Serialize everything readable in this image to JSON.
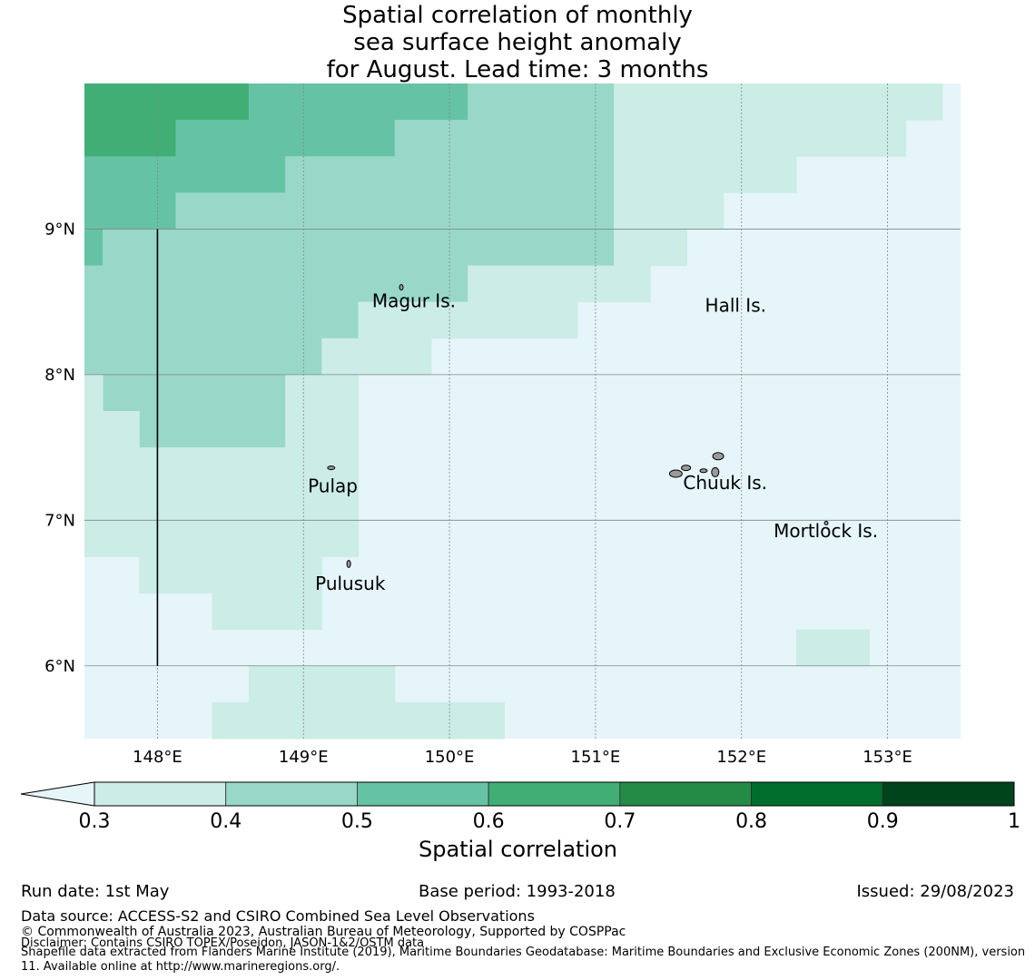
{
  "title": {
    "line1": "Spatial correlation of monthly",
    "line2": "sea surface height anomaly",
    "line3": "for August. Lead time: 3 months"
  },
  "map": {
    "lon_range": [
      147.5,
      153.5
    ],
    "lat_range": [
      5.5,
      10.0
    ],
    "lon_ticks": [
      148,
      149,
      150,
      151,
      152,
      153
    ],
    "lon_tick_labels": [
      "148°E",
      "149°E",
      "150°E",
      "151°E",
      "152°E",
      "153°E"
    ],
    "lat_ticks": [
      6,
      7,
      8,
      9
    ],
    "lat_tick_labels": [
      "6°N",
      "7°N",
      "8°N",
      "9°N"
    ],
    "background_color": "#e5f5f9",
    "class_colors": [
      "#e5f5f9",
      "#ccece6",
      "#99d8c9",
      "#66c2a4",
      "#41ae76",
      "#238b45",
      "#006d2c",
      "#00441b"
    ],
    "cells": [
      {
        "lon": [
          147.5,
          148.125
        ],
        "lat": [
          9.5,
          10.0
        ],
        "class": 4
      },
      {
        "lon": [
          148.125,
          148.625
        ],
        "lat": [
          9.75,
          10.0
        ],
        "class": 4
      },
      {
        "lon": [
          148.125,
          149.625
        ],
        "lat": [
          9.5,
          9.75
        ],
        "class": 3
      },
      {
        "lon": [
          148.625,
          150.125
        ],
        "lat": [
          9.75,
          10.0
        ],
        "class": 3
      },
      {
        "lon": [
          147.5,
          148.875
        ],
        "lat": [
          9.25,
          9.5
        ],
        "class": 3
      },
      {
        "lon": [
          147.5,
          148.125
        ],
        "lat": [
          9.0,
          9.25
        ],
        "class": 3
      },
      {
        "lon": [
          147.5,
          147.625
        ],
        "lat": [
          8.75,
          9.0
        ],
        "class": 3
      },
      {
        "lon": [
          150.125,
          151.125
        ],
        "lat": [
          9.75,
          10.0
        ],
        "class": 2
      },
      {
        "lon": [
          149.625,
          151.125
        ],
        "lat": [
          9.5,
          9.75
        ],
        "class": 2
      },
      {
        "lon": [
          148.875,
          151.125
        ],
        "lat": [
          9.25,
          9.5
        ],
        "class": 2
      },
      {
        "lon": [
          148.125,
          151.125
        ],
        "lat": [
          9.0,
          9.25
        ],
        "class": 2
      },
      {
        "lon": [
          147.625,
          151.125
        ],
        "lat": [
          8.75,
          9.0
        ],
        "class": 2
      },
      {
        "lon": [
          147.5,
          150.125
        ],
        "lat": [
          8.5,
          8.75
        ],
        "class": 2
      },
      {
        "lon": [
          147.5,
          149.375
        ],
        "lat": [
          8.25,
          8.5
        ],
        "class": 2
      },
      {
        "lon": [
          147.5,
          149.125
        ],
        "lat": [
          8.0,
          8.25
        ],
        "class": 2
      },
      {
        "lon": [
          147.625,
          148.875
        ],
        "lat": [
          7.75,
          8.0
        ],
        "class": 2
      },
      {
        "lon": [
          147.875,
          148.375
        ],
        "lat": [
          7.5,
          7.75
        ],
        "class": 2
      },
      {
        "lon": [
          147.875,
          148.375
        ],
        "lat": [
          7.5,
          7.75
        ],
        "class": 2
      },
      {
        "lon": [
          148.375,
          148.375
        ],
        "lat": [
          7.5,
          7.75
        ],
        "class": 2
      },
      {
        "lon": [
          147.875,
          148.125
        ],
        "lat": [
          7.5,
          7.75
        ],
        "class": 2
      },
      {
        "lon": [
          147.875,
          147.875
        ],
        "lat": [
          7.5,
          7.75
        ],
        "class": 2
      },
      {
        "lon": [
          147.875,
          147.875
        ],
        "lat": [
          7.5,
          7.75
        ],
        "class": 2
      },
      {
        "lon": [
          147.875,
          147.875
        ],
        "lat": [
          7.5,
          7.75
        ],
        "class": 2
      },
      {
        "lon": [
          147.875,
          148.875
        ],
        "lat": [
          7.5,
          7.75
        ],
        "class": 2
      },
      {
        "lon": [
          151.125,
          153.375
        ],
        "lat": [
          9.75,
          10.0
        ],
        "class": 1
      },
      {
        "lon": [
          151.125,
          153.125
        ],
        "lat": [
          9.5,
          9.75
        ],
        "class": 1
      },
      {
        "lon": [
          151.125,
          152.375
        ],
        "lat": [
          9.25,
          9.5
        ],
        "class": 1
      },
      {
        "lon": [
          151.125,
          151.875
        ],
        "lat": [
          9.0,
          9.25
        ],
        "class": 1
      },
      {
        "lon": [
          151.125,
          151.625
        ],
        "lat": [
          8.75,
          9.0
        ],
        "class": 1
      },
      {
        "lon": [
          150.125,
          151.375
        ],
        "lat": [
          8.5,
          8.75
        ],
        "class": 1
      },
      {
        "lon": [
          149.375,
          150.875
        ],
        "lat": [
          8.25,
          8.5
        ],
        "class": 1
      },
      {
        "lon": [
          149.125,
          149.875
        ],
        "lat": [
          8.0,
          8.25
        ],
        "class": 1
      },
      {
        "lon": [
          147.5,
          147.625
        ],
        "lat": [
          7.75,
          8.0
        ],
        "class": 1
      },
      {
        "lon": [
          148.875,
          149.375
        ],
        "lat": [
          7.75,
          8.0
        ],
        "class": 1
      },
      {
        "lon": [
          147.5,
          147.875
        ],
        "lat": [
          7.5,
          7.75
        ],
        "class": 1
      },
      {
        "lon": [
          148.875,
          149.375
        ],
        "lat": [
          7.5,
          7.75
        ],
        "class": 1
      },
      {
        "lon": [
          147.5,
          149.125
        ],
        "lat": [
          7.0,
          7.5
        ],
        "class": 1
      },
      {
        "lon": [
          147.5,
          149.375
        ],
        "lat": [
          7.0,
          7.5
        ],
        "class": 1
      },
      {
        "lon": [
          147.5,
          149.375
        ],
        "lat": [
          6.75,
          7.0
        ],
        "class": 1
      },
      {
        "lon": [
          147.875,
          149.125
        ],
        "lat": [
          6.5,
          6.75
        ],
        "class": 1
      },
      {
        "lon": [
          148.375,
          149.125
        ],
        "lat": [
          6.25,
          6.5
        ],
        "class": 1
      },
      {
        "lon": [
          148.625,
          149.625
        ],
        "lat": [
          5.75,
          6.0
        ],
        "class": 1
      },
      {
        "lon": [
          148.375,
          150.375
        ],
        "lat": [
          5.5,
          5.75
        ],
        "class": 1
      },
      {
        "lon": [
          152.375,
          152.875
        ],
        "lat": [
          6.0,
          6.25
        ],
        "class": 1
      }
    ],
    "colorbar_boundary": "#2b2b2b",
    "places": [
      {
        "name": "Magur Is.",
        "lon": 149.47,
        "lat": 8.5
      },
      {
        "name": "Hall Is.",
        "lon": 151.75,
        "lat": 8.47
      },
      {
        "name": "Pulap",
        "lon": 149.03,
        "lat": 7.23
      },
      {
        "name": "Chuuk Is.",
        "lon": 151.6,
        "lat": 7.25
      },
      {
        "name": "Mortlock Is.",
        "lon": 152.22,
        "lat": 6.92
      },
      {
        "name": "Pulusuk",
        "lon": 149.08,
        "lat": 6.56
      }
    ]
  },
  "colorbar": {
    "label": "Spatial correlation",
    "ticks": [
      "0.3",
      "0.4",
      "0.5",
      "0.6",
      "0.7",
      "0.8",
      "0.9",
      "1"
    ],
    "colors": [
      "#ccece6",
      "#99d8c9",
      "#66c2a4",
      "#41ae76",
      "#238b45",
      "#006d2c",
      "#00441b"
    ],
    "extend_color": "#e5f5f9"
  },
  "footer": {
    "run_date": "Run date: 1st May",
    "base_period": "Base period: 1993-2018",
    "issued": "Issued: 29/08/2023",
    "data_source": "Data source: ACCESS-S2 and CSIRO Combined Sea Level Observations",
    "copyright": "© Commonwealth of Australia 2023, Australian Bureau of Meteorology, Supported by COSPPac",
    "disclaimer": "Disclaimer: Contains CSIRO TOPEX/Poseidon, JASON-1&2/OSTM data",
    "shapefile": "Shapefile data extracted from Flanders Marine Institute (2019), Maritime Boundaries Geodatabase: Maritime Boundaries and Exclusive Economic Zones (200NM), version 11. Available online at http://www.marineregions.org/."
  }
}
